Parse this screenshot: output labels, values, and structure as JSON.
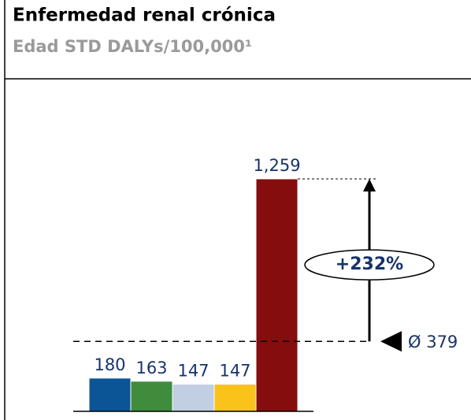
{
  "chart_data": {
    "type": "bar",
    "title": "Enfermedad renal crónica",
    "subtitle": "Edad STD DALYs/100,000¹",
    "categories": [
      null,
      null,
      null,
      null,
      null
    ],
    "values": [
      180,
      163,
      147,
      147,
      1259
    ],
    "value_labels": [
      "180",
      "163",
      "147",
      "147",
      "1,259"
    ],
    "colors": [
      "#0b5596",
      "#3f8c3c",
      "#c2cfe2",
      "#f9c31b",
      "#860d0e"
    ],
    "ylim": [
      0,
      1500
    ],
    "average": 379,
    "average_label": "Ø 379",
    "annotation": "+232%"
  }
}
